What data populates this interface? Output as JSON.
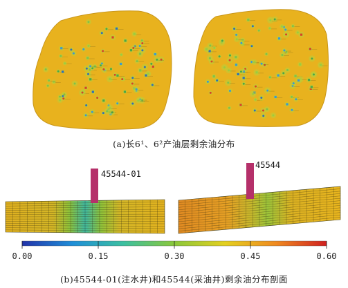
{
  "panel_a": {
    "caption": "(a)长6¹、6²产油层剩余油分布",
    "colors": {
      "map_fill": "#e8b21e",
      "map_edge": "#c8961a",
      "halo": "#b9cf3a"
    }
  },
  "panel_b": {
    "caption": "(b)45544-01(注水井)和45544(采油井)剩余油分布剖面",
    "injection_well": {
      "label": "45544-01",
      "color": "#b5306a"
    },
    "production_well": {
      "label": "45544",
      "color": "#b5306a"
    }
  },
  "colorbar": {
    "ticks": [
      "0.00",
      "0.15",
      "0.30",
      "0.45",
      "0.60"
    ],
    "min": 0.0,
    "max": 0.6,
    "stops": [
      "#2233aa",
      "#1f8fd8",
      "#3cc0a0",
      "#8ac83a",
      "#e4d020",
      "#f08a20",
      "#d02020"
    ]
  }
}
